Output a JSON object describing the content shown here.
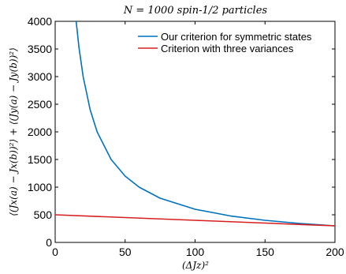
{
  "chart_data": {
    "type": "line",
    "title": "N = 1000 spin-1/2 particles",
    "xlabel": "(ΔJz)²",
    "ylabel": "⟨(Jx(a) − Jx(b))²⟩ + ⟨(Jy(a) − Jy(b))²⟩",
    "xlim": [
      0,
      200
    ],
    "ylim": [
      0,
      4000
    ],
    "xticks": [
      "0",
      "50",
      "100",
      "150",
      "200"
    ],
    "yticks": [
      "0",
      "500",
      "1000",
      "1500",
      "2000",
      "2500",
      "3000",
      "3500",
      "4000"
    ],
    "grid": false,
    "legend_position": "top-right",
    "series": [
      {
        "name": "Our criterion for symmetric states",
        "color": "#0072BD",
        "x": [
          15,
          17,
          20,
          25,
          30,
          40,
          50,
          60,
          75,
          100,
          125,
          150,
          175,
          200
        ],
        "y": [
          4000,
          3530,
          3000,
          2400,
          2000,
          1500,
          1200,
          1000,
          800,
          600,
          480,
          400,
          343,
          300
        ]
      },
      {
        "name": "Criterion with three variances",
        "color": "#D62020",
        "x": [
          0,
          50,
          100,
          150,
          200
        ],
        "y": [
          500,
          450,
          400,
          350,
          300
        ]
      }
    ]
  }
}
